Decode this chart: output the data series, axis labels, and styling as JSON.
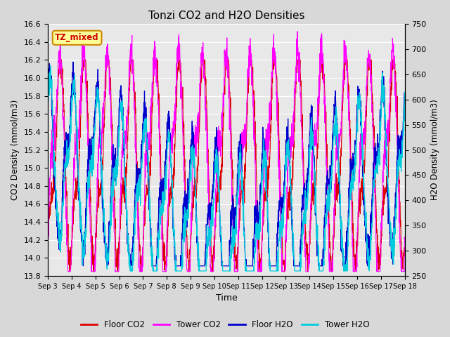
{
  "title": "Tonzi CO2 and H2O Densities",
  "xlabel": "Time",
  "ylabel_left": "CO2 Density (mmol/m3)",
  "ylabel_right": "H2O Density (mmol/m3)",
  "annotation_text": "TZ_mixed",
  "annotation_color": "#cc0000",
  "annotation_bg": "#ffff99",
  "annotation_border": "#cc8800",
  "ylim_left": [
    13.8,
    16.6
  ],
  "ylim_right": [
    250,
    750
  ],
  "yticks_left": [
    13.8,
    14.0,
    14.2,
    14.4,
    14.6,
    14.8,
    15.0,
    15.2,
    15.4,
    15.6,
    15.8,
    16.0,
    16.2,
    16.4,
    16.6
  ],
  "yticks_right": [
    250,
    300,
    350,
    400,
    450,
    500,
    550,
    600,
    650,
    700,
    750
  ],
  "xtick_labels": [
    "Sep 3",
    "Sep 4",
    "Sep 5",
    "Sep 6",
    "Sep 7",
    "Sep 8",
    "Sep 9",
    "Sep 10",
    "Sep 11",
    "Sep 12",
    "Sep 13",
    "Sep 14",
    "Sep 15",
    "Sep 16",
    "Sep 17",
    "Sep 18"
  ],
  "colors": {
    "floor_co2": "#dd0000",
    "tower_co2": "#ff00ff",
    "floor_h2o": "#0000cc",
    "tower_h2o": "#00ccdd"
  },
  "legend_labels": [
    "Floor CO2",
    "Tower CO2",
    "Floor H2O",
    "Tower H2O"
  ],
  "background_color": "#d8d8d8",
  "plot_bg_color": "#e8e8e8",
  "grid_color": "#ffffff",
  "n_points": 2000,
  "seed": 42
}
